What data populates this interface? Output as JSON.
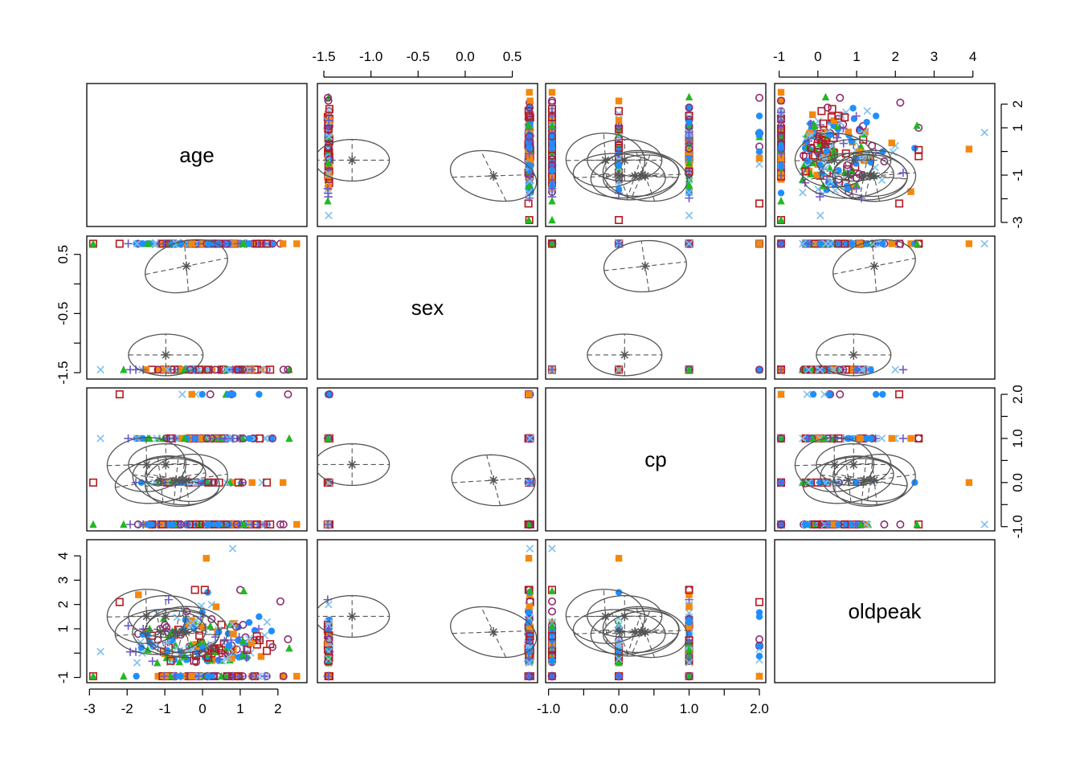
{
  "chart_data": {
    "type": "scatter",
    "plot_kind": "scatterplot matrix with per-class covariance ellipses",
    "variables": [
      "age",
      "sex",
      "cp",
      "oldpeak"
    ],
    "ranges": {
      "age": [
        -2.9,
        2.6
      ],
      "sex": [
        -1.5,
        0.7
      ],
      "cp": [
        -0.95,
        2.0
      ],
      "oldpeak": [
        -0.95,
        4.4
      ]
    },
    "ticks": {
      "age": {
        "values": [
          -3,
          -2,
          -1,
          0,
          1,
          2
        ],
        "labels": [
          "-3",
          "-2",
          "-1",
          "0",
          "1",
          "2"
        ],
        "bottom_labels": [
          "-3",
          "-2",
          "-1",
          "0",
          "1",
          "2"
        ],
        "right_values": [
          -3,
          -2,
          -1,
          0,
          1,
          2
        ],
        "right_labels": [
          "-3",
          "",
          "-1",
          "",
          "1",
          "2"
        ]
      },
      "sex": {
        "values": [
          -1.5,
          -1.0,
          -0.5,
          0.0,
          0.5
        ],
        "top_labels": [
          "-1.5",
          "-1.0",
          "-0.5",
          "0.0",
          "0.5"
        ],
        "left_values": [
          -1.5,
          -1.0,
          -0.5,
          0.0,
          0.5
        ],
        "left_labels": [
          "-1.5",
          "",
          "-0.5",
          "",
          "0.5"
        ]
      },
      "cp": {
        "values": [
          -1.0,
          -0.5,
          0.0,
          0.5,
          1.0,
          1.5,
          2.0
        ],
        "bottom_labels": [
          "-1.0",
          "",
          "0.0",
          "",
          "1.0",
          "",
          "2.0"
        ],
        "right_labels": [
          "-1.0",
          "",
          "0.0",
          "",
          "1.0",
          "",
          "2.0"
        ]
      },
      "oldpeak": {
        "values": [
          -1,
          0,
          1,
          2,
          3,
          4
        ],
        "top_labels": [
          "-1",
          "0",
          "1",
          "2",
          "3",
          "4"
        ],
        "left_labels": [
          "-1",
          "",
          "1",
          "2",
          "3",
          "4"
        ]
      }
    },
    "series_styles": [
      {
        "color": "#1f8fff",
        "shape": "filled-circle"
      },
      {
        "color": "#f4880e",
        "shape": "filled-square"
      },
      {
        "color": "#22b822",
        "shape": "filled-triangle"
      },
      {
        "color": "#b5191f",
        "shape": "open-square"
      },
      {
        "color": "#6a5acd",
        "shape": "plus"
      },
      {
        "color": "#7fbfea",
        "shape": "cross"
      },
      {
        "color": "#8b2c6e",
        "shape": "open-circle"
      }
    ],
    "ellipse_color": "#555555",
    "center_marker": "asterisk",
    "sample_points": [
      {
        "age": 0.35,
        "sex": 0.68,
        "cp": 1.0,
        "oldpeak": 0.1,
        "s": 3
      },
      {
        "age": -1.2,
        "sex": -1.45,
        "cp": 0.0,
        "oldpeak": -0.4,
        "s": 2
      },
      {
        "age": 1.5,
        "sex": 0.68,
        "cp": 2.0,
        "oldpeak": 1.5,
        "s": 0
      },
      {
        "age": 0.8,
        "sex": 0.68,
        "cp": -0.95,
        "oldpeak": 4.3,
        "s": 5
      },
      {
        "age": -2.2,
        "sex": 0.68,
        "cp": 2.0,
        "oldpeak": 2.1,
        "s": 3
      },
      {
        "age": 2.5,
        "sex": 0.68,
        "cp": -0.95,
        "oldpeak": -0.95,
        "s": 1
      },
      {
        "age": -0.9,
        "sex": -1.45,
        "cp": 1.0,
        "oldpeak": 2.2,
        "s": 4
      },
      {
        "age": 0.1,
        "sex": 0.68,
        "cp": 0.0,
        "oldpeak": 3.9,
        "s": 1
      },
      {
        "age": -2.9,
        "sex": 0.68,
        "cp": 0.0,
        "oldpeak": -0.95,
        "s": 3
      },
      {
        "age": 2.3,
        "sex": -1.45,
        "cp": 1.0,
        "oldpeak": 0.2,
        "s": 2
      },
      {
        "age": 0.6,
        "sex": -1.45,
        "cp": -0.95,
        "oldpeak": 0.0,
        "s": 6
      },
      {
        "age": -0.2,
        "sex": 0.68,
        "cp": -0.95,
        "oldpeak": 2.6,
        "s": 3
      },
      {
        "age": 1.0,
        "sex": 0.68,
        "cp": 1.0,
        "oldpeak": 2.6,
        "s": 6
      },
      {
        "age": 1.7,
        "sex": -1.45,
        "cp": -0.95,
        "oldpeak": -0.95,
        "s": 6
      },
      {
        "age": -1.7,
        "sex": 0.68,
        "cp": 1.0,
        "oldpeak": 2.4,
        "s": 1
      }
    ]
  }
}
